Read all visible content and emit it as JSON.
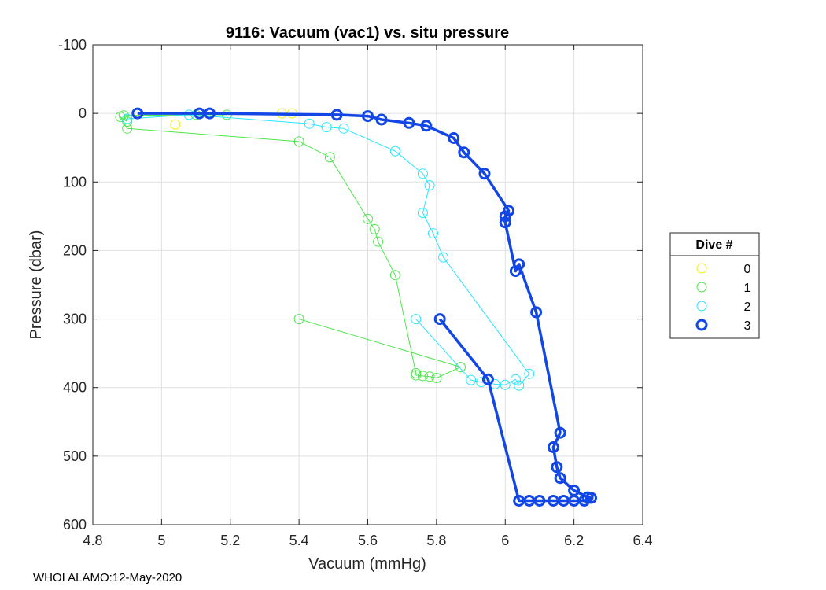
{
  "chart_data": {
    "type": "line",
    "title": "9116: Vacuum (vac1) vs. situ pressure",
    "xlabel": "Vacuum (mmHg)",
    "ylabel": "Pressure (dbar)",
    "xlim": [
      4.8,
      6.4
    ],
    "ylim": [
      -100,
      600
    ],
    "y_reversed": true,
    "xticks": [
      4.8,
      5,
      5.2,
      5.4,
      5.6,
      5.8,
      6,
      6.2,
      6.4
    ],
    "xtick_labels": [
      "4.8",
      "5",
      "5.2",
      "5.4",
      "5.6",
      "5.8",
      "6",
      "6.2",
      "6.4"
    ],
    "yticks": [
      -100,
      0,
      100,
      200,
      300,
      400,
      500,
      600
    ],
    "ytick_labels": [
      "-100",
      "0",
      "100",
      "200",
      "300",
      "400",
      "500",
      "600"
    ],
    "grid": true,
    "legend_title": "Dive #",
    "legend_position": "right",
    "series": [
      {
        "name": "0",
        "color": "#f2f20d",
        "x": [
          5.04,
          5.35,
          5.38
        ],
        "y": [
          16,
          0,
          0
        ]
      },
      {
        "name": "1",
        "color": "#4de64d",
        "x": [
          5.4,
          5.87,
          5.8,
          5.78,
          5.76,
          5.74,
          5.74,
          5.68,
          5.63,
          5.62,
          5.6,
          5.49,
          5.4,
          4.9,
          4.88,
          4.9,
          4.89,
          5.19,
          5.1
        ],
        "y": [
          300,
          370,
          386,
          384,
          383,
          382,
          379,
          236,
          187,
          169,
          154,
          64,
          41,
          22,
          5,
          12,
          3,
          2,
          2
        ],
        "show_line": true
      },
      {
        "name": "2",
        "color": "#26e6ff",
        "x": [
          5.74,
          5.9,
          5.93,
          5.97,
          6.0,
          6.03,
          6.04,
          6.07,
          5.82,
          5.79,
          5.76,
          5.78,
          5.76,
          5.68,
          5.53,
          5.48,
          5.43,
          5.08,
          4.9
        ],
        "y": [
          300,
          389,
          392,
          395,
          396,
          388,
          397,
          380,
          210,
          175,
          145,
          105,
          88,
          55,
          22,
          20,
          15,
          2,
          8
        ],
        "show_line": true
      },
      {
        "name": "3",
        "color": "#1247e6",
        "x": [
          5.81,
          5.95,
          6.04,
          6.07,
          6.1,
          6.14,
          6.17,
          6.2,
          6.23,
          6.25,
          6.24,
          6.2,
          6.16,
          6.15,
          6.14,
          6.16,
          6.09,
          6.04,
          6.03,
          6.0,
          6.0,
          6.01,
          5.94,
          5.88,
          5.85,
          5.77,
          5.72,
          5.64,
          5.6,
          5.51,
          5.14,
          5.11,
          4.93
        ],
        "y": [
          300,
          388,
          565,
          565,
          565,
          565,
          565,
          565,
          565,
          561,
          560,
          550,
          532,
          516,
          487,
          466,
          290,
          220,
          230,
          159,
          150,
          142,
          88,
          57,
          36,
          18,
          14,
          9,
          4,
          2,
          0,
          0,
          0
        ],
        "show_line": true
      }
    ]
  },
  "footer": "WHOI ALAMO:12-May-2020"
}
